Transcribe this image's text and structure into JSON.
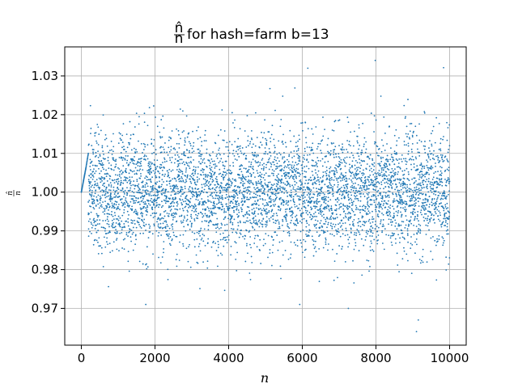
{
  "chart_data": {
    "type": "scatter",
    "title": {
      "frac_numerator": "n̂",
      "frac_denominator": "n",
      "suffix": " for hash=farm b=13"
    },
    "xlabel": "n",
    "ylabel": {
      "frac_numerator": "n̂",
      "frac_denominator": "n"
    },
    "xlim": [
      -450,
      10450
    ],
    "ylim": [
      0.9605,
      1.0375
    ],
    "x_ticks": [
      0,
      2000,
      4000,
      6000,
      8000,
      10000
    ],
    "x_tick_labels": [
      "0",
      "2000",
      "4000",
      "6000",
      "8000",
      "10000"
    ],
    "y_ticks": [
      0.97,
      0.98,
      0.99,
      1.0,
      1.01,
      1.02,
      1.03
    ],
    "y_tick_labels": [
      "0.97",
      "0.98",
      "0.99",
      "1.00",
      "1.01",
      "1.02",
      "1.03"
    ],
    "grid": true,
    "legend": "none",
    "point_color": "#1f77b4",
    "series": [
      {
        "x_start": 1,
        "x_end": 10000,
        "x_step": 1,
        "mean": 1.0,
        "approx_std": 0.0075,
        "min_observed": 0.964,
        "max_observed": 1.034,
        "notes_outliers": [
          [
            6150,
            1.032
          ],
          [
            7980,
            1.034
          ],
          [
            9100,
            0.964
          ],
          [
            9150,
            0.967
          ],
          [
            5930,
            0.971
          ],
          [
            7250,
            0.97
          ],
          [
            1750,
            0.971
          ]
        ],
        "startup_segment": [
          [
            1,
            1.0
          ],
          [
            60,
            1.003
          ],
          [
            120,
            1.006
          ],
          [
            190,
            1.01
          ]
        ]
      }
    ]
  }
}
